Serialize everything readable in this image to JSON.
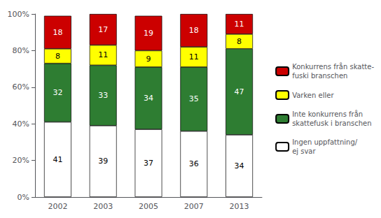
{
  "chart_data": {
    "type": "bar",
    "categories": [
      "2002",
      "2003",
      "2005",
      "2007",
      "2013"
    ],
    "series": [
      {
        "name": "Ingen uppfattning/\nej svar",
        "color": "#ffffff",
        "values": [
          41,
          39,
          37,
          36,
          34
        ]
      },
      {
        "name": "Inte konkurrens från\nskattefusk i branschen",
        "color": "#2e7d32",
        "values": [
          32,
          33,
          34,
          35,
          47
        ]
      },
      {
        "name": "Varken eller",
        "color": "#ffff00",
        "values": [
          8,
          11,
          9,
          11,
          8
        ]
      },
      {
        "name": "Konkurrens från skatte-\nfuski branschen",
        "color": "#cc0000",
        "values": [
          18,
          17,
          19,
          18,
          11
        ]
      }
    ],
    "stacked": true,
    "data_labels": true,
    "legend": "right",
    "grid": false,
    "ylim": [
      0,
      100
    ],
    "yticks": [
      {
        "value": 0,
        "label": "0%"
      },
      {
        "value": 20,
        "label": "20%"
      },
      {
        "value": 40,
        "label": "40%"
      },
      {
        "value": 60,
        "label": "60%"
      },
      {
        "value": 80,
        "label": "80%"
      },
      {
        "value": 100,
        "label": "100%"
      }
    ]
  }
}
